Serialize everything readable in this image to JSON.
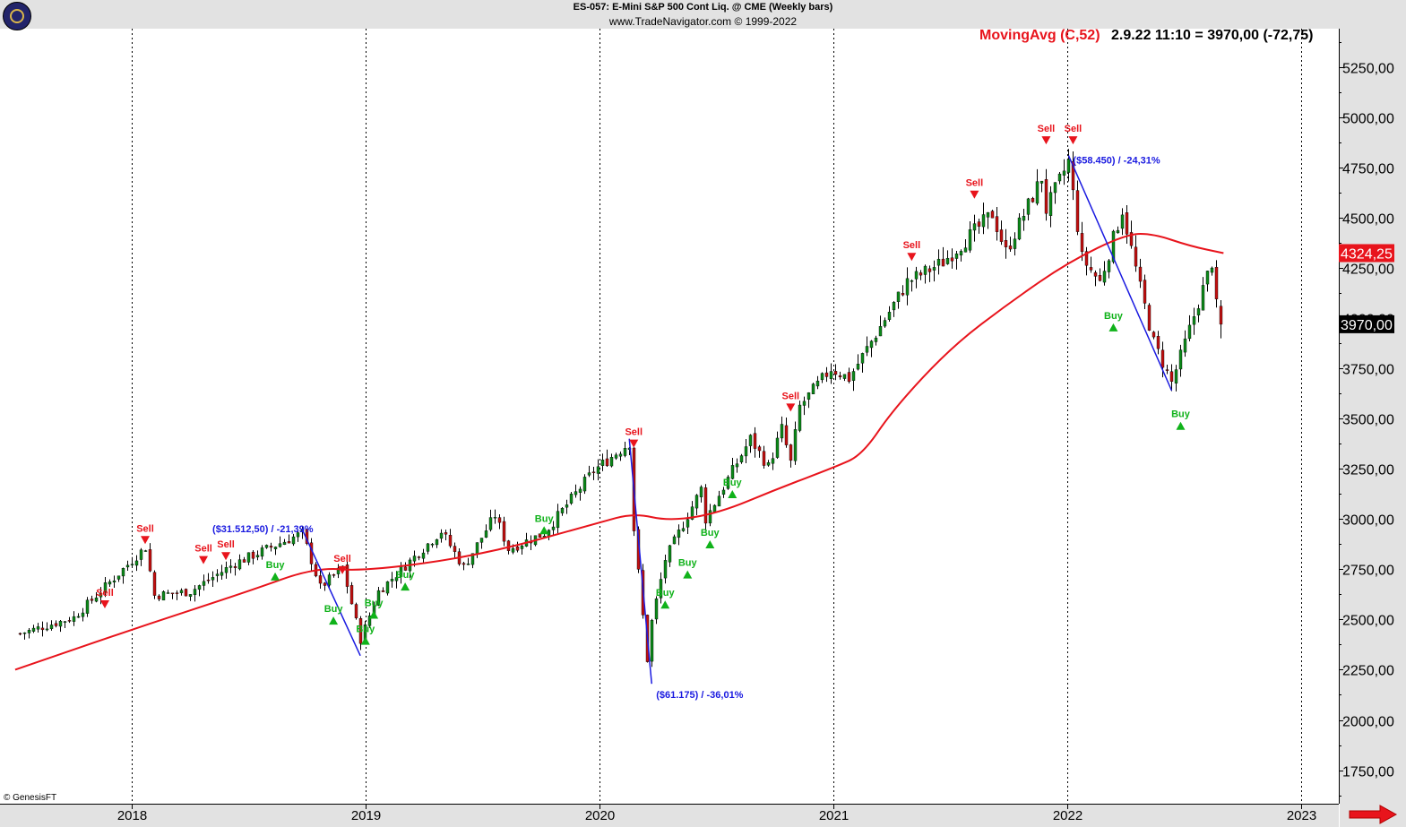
{
  "header": {
    "title": "ES-057:  E-Mini S&P 500 Cont Liq. @ CME  (Weekly bars)",
    "copyright": "www.TradeNavigator.com © 1999-2022"
  },
  "indicator": {
    "name": "MovingAvg (C,52)",
    "readout": "2.9.22 11:10 = 3970,00 (-72,75)"
  },
  "footer_note": "© GenesisFT",
  "icons": {
    "logo": "trade-navigator-logo-icon",
    "scroll": "red-right-arrow-icon"
  },
  "colors": {
    "up": "#0c8a1a",
    "down": "#c21010",
    "ma": "#e8141c",
    "trendline": "#1a1ae0",
    "sell": "#e8141c",
    "buy": "#10b21a",
    "band": "#e2e2e2"
  },
  "chart_data": {
    "type": "candlestick",
    "title": "ES-057:  E-Mini S&P 500 Cont Liq. @ CME  (Weekly bars)",
    "x_axis": {
      "labels": [
        "2018",
        "2019",
        "2020",
        "2021",
        "2022",
        "2023"
      ],
      "range": [
        "2017-07-10",
        "2023-02-27"
      ],
      "year_lines": [
        "2018-01-01",
        "2019-01-01",
        "2020-01-01",
        "2021-01-01",
        "2022-01-01",
        "2023-01-01"
      ]
    },
    "y_axis": {
      "position": "right",
      "range": [
        1590,
        5415
      ],
      "ticks": [
        "1750,00",
        "2000,00",
        "2250,00",
        "2500,00",
        "2750,00",
        "3000,00",
        "3250,00",
        "3500,00",
        "3750,00",
        "4000,00",
        "4250,00",
        "4500,00",
        "4750,00",
        "5000,00",
        "5250,00"
      ],
      "tick_values": [
        1750,
        2000,
        2250,
        2500,
        2750,
        3000,
        3250,
        3500,
        3750,
        4000,
        4250,
        4500,
        4750,
        5000,
        5250
      ]
    },
    "price_tags": [
      {
        "label": "4324,25",
        "value": 4324.25,
        "style": "ma"
      },
      {
        "label": "3970,00",
        "value": 3970.0,
        "style": "last"
      }
    ],
    "price_key_points": [
      {
        "date": "2017-07-10",
        "close": 2430
      },
      {
        "date": "2017-10-02",
        "close": 2510
      },
      {
        "date": "2018-01-22",
        "close": 2860
      },
      {
        "date": "2018-02-05",
        "close": 2620
      },
      {
        "date": "2018-04-02",
        "close": 2640
      },
      {
        "date": "2018-06-11",
        "close": 2780
      },
      {
        "date": "2018-09-24",
        "close": 2930
      },
      {
        "date": "2018-10-22",
        "close": 2660
      },
      {
        "date": "2018-11-26",
        "close": 2760
      },
      {
        "date": "2018-12-24",
        "close": 2400
      },
      {
        "date": "2019-01-21",
        "close": 2640
      },
      {
        "date": "2019-04-29",
        "close": 2940
      },
      {
        "date": "2019-06-03",
        "close": 2760
      },
      {
        "date": "2019-07-22",
        "close": 3020
      },
      {
        "date": "2019-08-12",
        "close": 2850
      },
      {
        "date": "2019-10-07",
        "close": 2930
      },
      {
        "date": "2019-12-23",
        "close": 3240
      },
      {
        "date": "2020-02-17",
        "close": 3380
      },
      {
        "date": "2020-02-24",
        "close": 2950
      },
      {
        "date": "2020-03-16",
        "close": 2300
      },
      {
        "date": "2020-03-23",
        "close": 2490
      },
      {
        "date": "2020-04-13",
        "close": 2800
      },
      {
        "date": "2020-06-08",
        "close": 3150
      },
      {
        "date": "2020-06-15",
        "close": 3000
      },
      {
        "date": "2020-08-24",
        "close": 3400
      },
      {
        "date": "2020-09-21",
        "close": 3260
      },
      {
        "date": "2020-10-12",
        "close": 3450
      },
      {
        "date": "2020-10-26",
        "close": 3280
      },
      {
        "date": "2020-11-09",
        "close": 3560
      },
      {
        "date": "2020-12-28",
        "close": 3750
      },
      {
        "date": "2021-01-25",
        "close": 3700
      },
      {
        "date": "2021-04-26",
        "close": 4180
      },
      {
        "date": "2021-06-21",
        "close": 4280
      },
      {
        "date": "2021-09-06",
        "close": 4520
      },
      {
        "date": "2021-09-27",
        "close": 4330
      },
      {
        "date": "2021-11-22",
        "close": 4700
      },
      {
        "date": "2021-11-29",
        "close": 4540
      },
      {
        "date": "2022-01-03",
        "close": 4780
      },
      {
        "date": "2022-01-24",
        "close": 4300
      },
      {
        "date": "2022-02-21",
        "close": 4180
      },
      {
        "date": "2022-03-28",
        "close": 4540
      },
      {
        "date": "2022-04-25",
        "close": 4150
      },
      {
        "date": "2022-05-16",
        "close": 3880
      },
      {
        "date": "2022-06-13",
        "close": 3680
      },
      {
        "date": "2022-06-27",
        "close": 3810
      },
      {
        "date": "2022-08-15",
        "close": 4280
      },
      {
        "date": "2022-08-22",
        "close": 4060
      },
      {
        "date": "2022-09-02",
        "close": 3970
      }
    ],
    "moving_average": {
      "name": "MovingAvg (C,52)",
      "points": [
        {
          "date": "2017-07-03",
          "value": 2250
        },
        {
          "date": "2018-01-01",
          "value": 2450
        },
        {
          "date": "2018-07-02",
          "value": 2640
        },
        {
          "date": "2018-10-15",
          "value": 2760
        },
        {
          "date": "2019-01-01",
          "value": 2740
        },
        {
          "date": "2019-07-01",
          "value": 2820
        },
        {
          "date": "2019-12-30",
          "value": 2980
        },
        {
          "date": "2020-02-24",
          "value": 3030
        },
        {
          "date": "2020-04-20",
          "value": 2990
        },
        {
          "date": "2020-07-06",
          "value": 3030
        },
        {
          "date": "2020-10-05",
          "value": 3150
        },
        {
          "date": "2021-01-04",
          "value": 3260
        },
        {
          "date": "2021-02-15",
          "value": 3320
        },
        {
          "date": "2021-04-05",
          "value": 3550
        },
        {
          "date": "2021-07-05",
          "value": 3860
        },
        {
          "date": "2021-10-04",
          "value": 4080
        },
        {
          "date": "2022-01-03",
          "value": 4280
        },
        {
          "date": "2022-04-04",
          "value": 4420
        },
        {
          "date": "2022-05-16",
          "value": 4420
        },
        {
          "date": "2022-07-11",
          "value": 4360
        },
        {
          "date": "2022-09-02",
          "value": 4324.25
        }
      ]
    },
    "trendlines": [
      {
        "from": {
          "date": "2018-09-24",
          "value": 2950
        },
        "to": {
          "date": "2018-12-24",
          "value": 2320
        },
        "label": "($31.512,50) / -21,39%",
        "label_at": {
          "date": "2018-05-07",
          "value": 2935
        }
      },
      {
        "from": {
          "date": "2020-02-17",
          "value": 3400
        },
        "to": {
          "date": "2020-03-23",
          "value": 2180
        },
        "label": "($61.175) / -36,01%",
        "label_at": {
          "date": "2020-03-30",
          "value": 2110
        }
      },
      {
        "from": {
          "date": "2022-01-03",
          "value": 4810
        },
        "to": {
          "date": "2022-06-13",
          "value": 3640
        },
        "label": "($58.450) / -24,31%",
        "label_at": {
          "date": "2022-01-10",
          "value": 4770
        }
      }
    ],
    "signals": [
      {
        "type": "Sell",
        "date": "2017-11-20",
        "value": 2600
      },
      {
        "type": "Sell",
        "date": "2018-01-22",
        "value": 2920
      },
      {
        "type": "Sell",
        "date": "2018-04-23",
        "value": 2820
      },
      {
        "type": "Sell",
        "date": "2018-05-28",
        "value": 2840
      },
      {
        "type": "Buy",
        "date": "2018-08-13",
        "value": 2730
      },
      {
        "type": "Buy",
        "date": "2018-11-12",
        "value": 2510
      },
      {
        "type": "Sell",
        "date": "2018-11-26",
        "value": 2770
      },
      {
        "type": "Buy",
        "date": "2019-01-01",
        "value": 2410
      },
      {
        "type": "Buy",
        "date": "2019-01-14",
        "value": 2540
      },
      {
        "type": "Buy",
        "date": "2019-03-04",
        "value": 2680
      },
      {
        "type": "Buy",
        "date": "2019-10-07",
        "value": 2960
      },
      {
        "type": "Sell",
        "date": "2020-02-24",
        "value": 3400
      },
      {
        "type": "Buy",
        "date": "2020-04-13",
        "value": 2590
      },
      {
        "type": "Buy",
        "date": "2020-05-18",
        "value": 2740
      },
      {
        "type": "Buy",
        "date": "2020-06-22",
        "value": 2890
      },
      {
        "type": "Buy",
        "date": "2020-07-27",
        "value": 3140
      },
      {
        "type": "Sell",
        "date": "2020-10-26",
        "value": 3580
      },
      {
        "type": "Sell",
        "date": "2021-05-03",
        "value": 4330
      },
      {
        "type": "Sell",
        "date": "2021-08-09",
        "value": 4640
      },
      {
        "type": "Sell",
        "date": "2021-11-29",
        "value": 4910
      },
      {
        "type": "Sell",
        "date": "2022-01-10",
        "value": 4910
      },
      {
        "type": "Buy",
        "date": "2022-03-14",
        "value": 3970
      },
      {
        "type": "Buy",
        "date": "2022-06-27",
        "value": 3480
      }
    ],
    "grid": false,
    "legend": "top-right"
  }
}
